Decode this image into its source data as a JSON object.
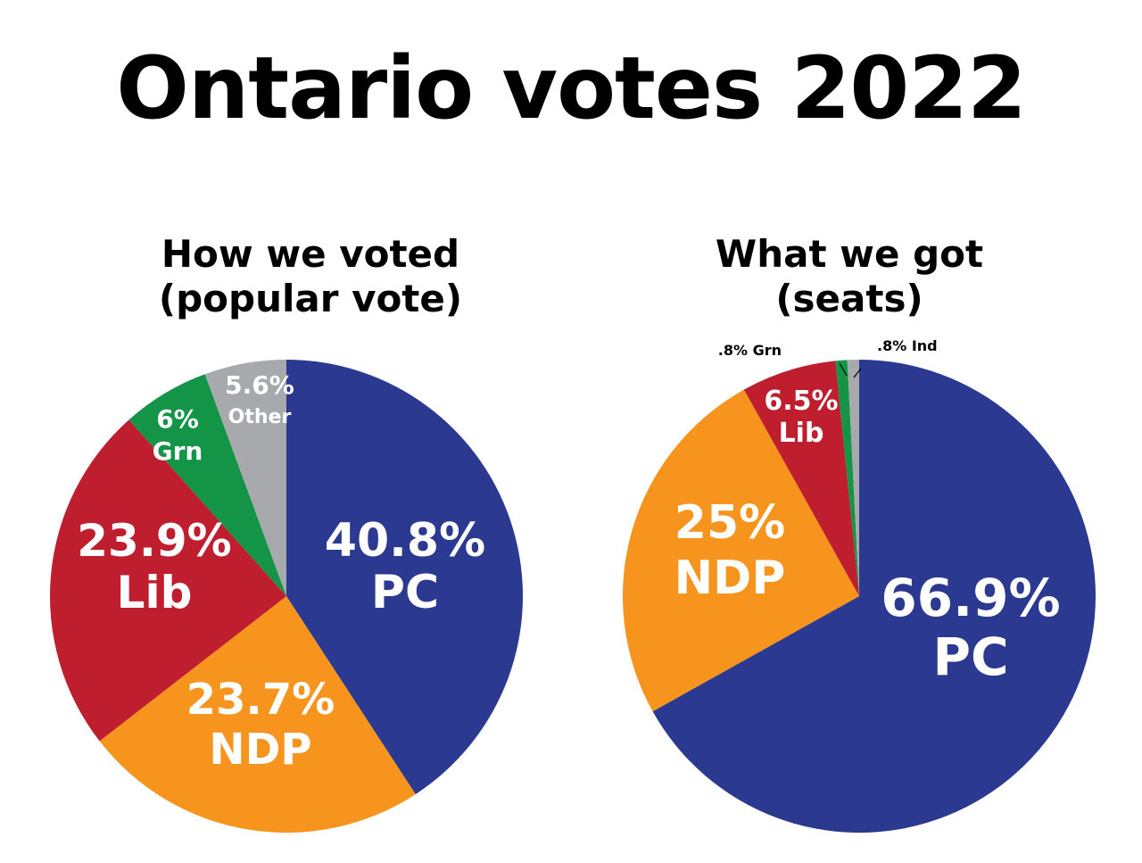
{
  "title": "Ontario votes 2022",
  "chart_data": [
    {
      "type": "pie",
      "title_lines": [
        "How we voted",
        "(popular vote)"
      ],
      "slices": [
        {
          "party": "PC",
          "value": 40.8,
          "label": "40.8%",
          "color": "#2b3990"
        },
        {
          "party": "NDP",
          "value": 23.7,
          "label": "23.7%",
          "color": "#f7941d"
        },
        {
          "party": "Lib",
          "value": 23.9,
          "label": "23.9%",
          "color": "#be1e2d"
        },
        {
          "party": "Grn",
          "value": 6,
          "label": "6%",
          "color": "#139447"
        },
        {
          "party": "Other",
          "value": 5.6,
          "label": "5.6%",
          "color": "#a7a9ac"
        }
      ]
    },
    {
      "type": "pie",
      "title_lines": [
        "What we got",
        "(seats)"
      ],
      "slices": [
        {
          "party": "PC",
          "value": 66.9,
          "label": "66.9%",
          "color": "#2b3990"
        },
        {
          "party": "NDP",
          "value": 25,
          "label": "25%",
          "color": "#f7941d"
        },
        {
          "party": "Lib",
          "value": 6.5,
          "label": "6.5%",
          "color": "#be1e2d"
        },
        {
          "party": "Grn",
          "value": 0.8,
          "label": ".8%",
          "color": "#139447"
        },
        {
          "party": "Ind",
          "value": 0.8,
          "label": ".8%",
          "color": "#a7a9ac"
        }
      ]
    }
  ]
}
